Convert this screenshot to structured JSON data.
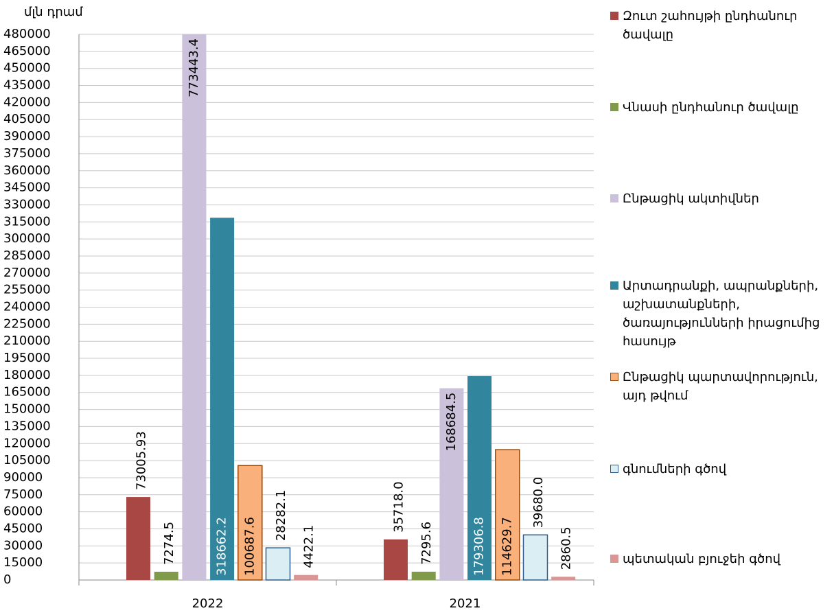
{
  "chart_data": {
    "type": "bar",
    "y_unit_label": "մլն դրամ",
    "categories": [
      "2022",
      "2021"
    ],
    "series": [
      {
        "name": "Զուտ շահույթի ընդհանուր ծավալը",
        "color": "#a94744",
        "values": [
          73005.93,
          35718.0
        ],
        "value_labels": [
          "73005.93",
          "35718.0"
        ]
      },
      {
        "name": "Վնասի ընդհանուր ծավալը",
        "color": "#7f9a48",
        "values": [
          7274.5,
          7295.6
        ],
        "value_labels": [
          "7274.5",
          "7295.6"
        ]
      },
      {
        "name": "Ընթացիկ ակտիվներ",
        "color": "#ccc1da",
        "values": [
          773443.4,
          168684.5
        ],
        "value_labels": [
          "773443.4",
          "168684.5"
        ]
      },
      {
        "name": "Արտադրանքի, ապրանքների, աշխատանքների, ծառայությունների իրացումից հասույթ",
        "color": "#31869e",
        "values": [
          318662.2,
          179306.8
        ],
        "value_labels": [
          "318662.2",
          "179306.8"
        ]
      },
      {
        "name": "Ընթացիկ պարտավորություն, այդ թվում",
        "color": "#fab07a",
        "border_color": "#984807",
        "values": [
          100687.6,
          114629.7
        ],
        "value_labels": [
          "100687.6",
          "114629.7"
        ]
      },
      {
        "name": "գնումների գծով",
        "color": "#dbeef4",
        "border_color": "#2e5c8a",
        "values": [
          28282.1,
          39680.0
        ],
        "value_labels": [
          "28282.1",
          "39680.0"
        ]
      },
      {
        "name": "պետական բյուջեի գծով",
        "color": "#d99694",
        "values": [
          4422.1,
          2860.5
        ],
        "value_labels": [
          "4422.1",
          "2860.5"
        ]
      }
    ],
    "ylim": [
      0,
      480000
    ],
    "yticks": [
      0,
      15000,
      30000,
      45000,
      60000,
      75000,
      90000,
      105000,
      120000,
      135000,
      150000,
      165000,
      180000,
      195000,
      210000,
      225000,
      240000,
      255000,
      270000,
      285000,
      300000,
      315000,
      330000,
      345000,
      360000,
      375000,
      390000,
      405000,
      420000,
      435000,
      450000,
      465000,
      480000
    ],
    "grid": true,
    "legend": "right"
  }
}
